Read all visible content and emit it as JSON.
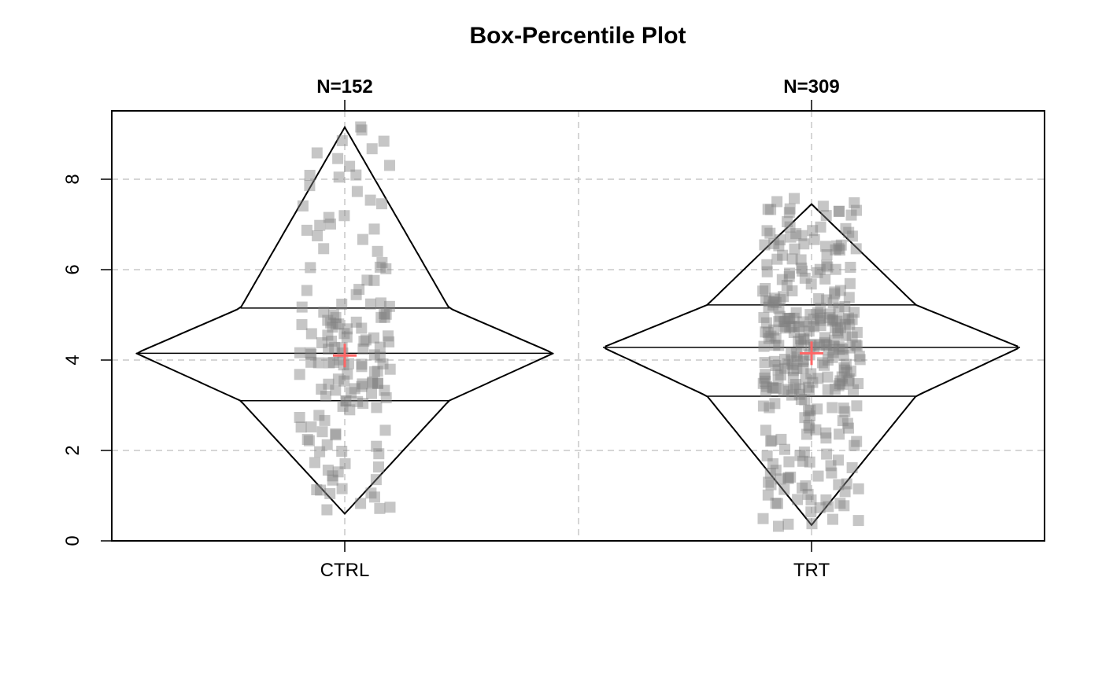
{
  "chart_data": {
    "type": "box-percentile",
    "title": "Box-Percentile Plot",
    "xlabel": "",
    "ylabel": "",
    "categories": [
      "CTRL",
      "TRT"
    ],
    "n_labels": [
      "N=152",
      "N=309"
    ],
    "ylim": [
      0,
      9.5
    ],
    "yticks": [
      0,
      2,
      4,
      6,
      8
    ],
    "grid": true,
    "colors": {
      "outline": "#000000",
      "points": "#808080",
      "mean_marker": "#ff6666",
      "grid": "#c8c8c8"
    },
    "series": [
      {
        "category": "CTRL",
        "n": 152,
        "min": 0.6,
        "q1": 3.1,
        "median": 4.15,
        "q3": 5.15,
        "max": 9.15,
        "mean": 4.1
      },
      {
        "category": "TRT",
        "n": 309,
        "min": 0.35,
        "q1": 3.2,
        "median": 4.28,
        "q3": 5.22,
        "max": 7.45,
        "mean": 4.15
      }
    ]
  }
}
